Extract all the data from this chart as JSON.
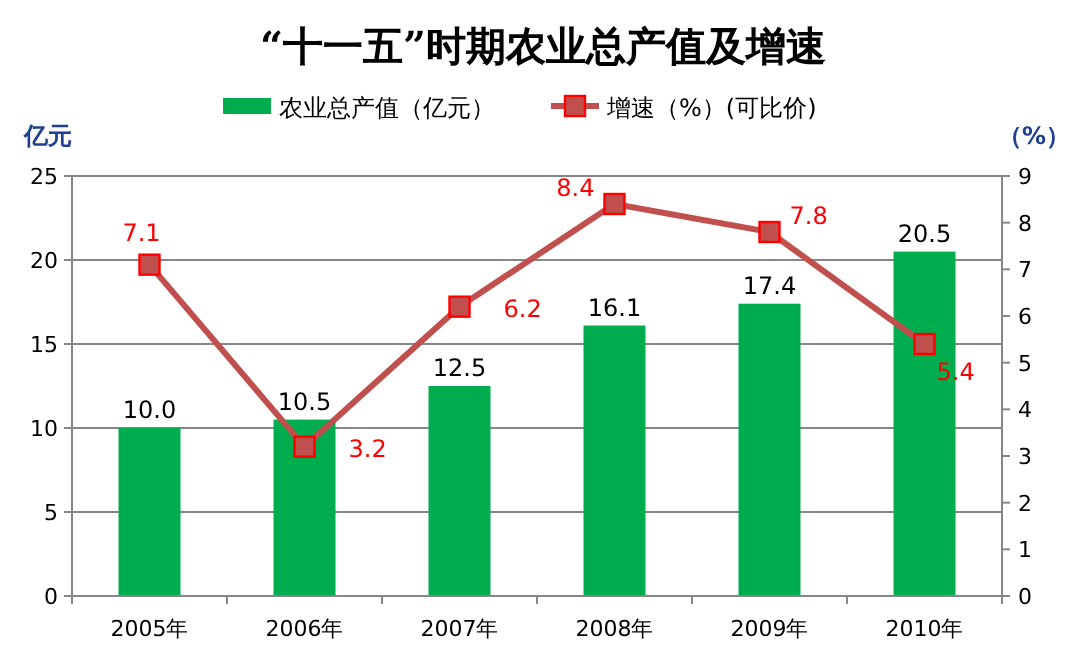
{
  "chart_data": {
    "type": "bar",
    "title": "“十一五”时期农业总产值及增速",
    "ylabel": "亿元",
    "y2label": "（%）",
    "categories": [
      "2005年",
      "2006年",
      "2007年",
      "2008年",
      "2009年",
      "2010年"
    ],
    "series": [
      {
        "name": "农业总产值（亿元）",
        "color": "#00ad4e",
        "values": [
          10.0,
          10.5,
          12.5,
          16.1,
          17.4,
          20.5
        ],
        "value_labels": [
          "10.0",
          "10.5",
          "12.5",
          "16.1",
          "17.4",
          "20.5"
        ]
      },
      {
        "name": "增速（%）(可比价)",
        "type": "line",
        "axis": "y2",
        "color": "#c0504d",
        "marker": "square",
        "values": [
          7.1,
          3.2,
          6.2,
          8.4,
          7.8,
          5.4
        ],
        "value_labels": [
          "7.1",
          "3.2",
          "6.2",
          "8.4",
          "7.8",
          "5.4"
        ]
      }
    ],
    "ylim": [
      0,
      25
    ],
    "yticks": [
      0,
      5,
      10,
      15,
      20,
      25
    ],
    "y2lim": [
      0,
      9
    ],
    "y2ticks": [
      0,
      1,
      2,
      3,
      4,
      5,
      6,
      7,
      8,
      9
    ],
    "grid": "y",
    "legend": "top"
  }
}
